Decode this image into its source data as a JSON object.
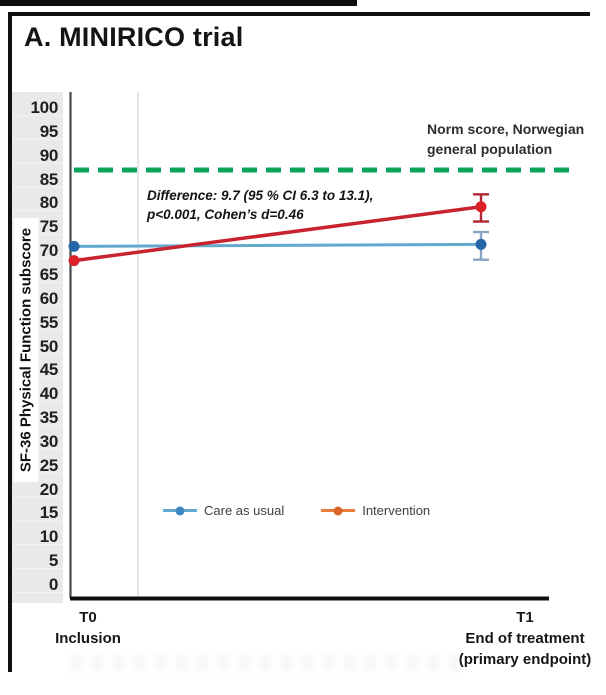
{
  "figure": {
    "panel_label": "A. MINIRICO trial"
  },
  "chart_data": {
    "type": "line",
    "title": "A. MINIRICO trial",
    "xlabel": "",
    "ylabel": "SF-36 Physical Function subscore",
    "ylim": [
      0,
      100
    ],
    "ytick_step": 5,
    "gridlines": "single faint vertical line near T0, no horizontal gridlines",
    "legend_position": "bottom-center inside plot",
    "categories": [
      "T0",
      "T1"
    ],
    "x_tick_labels": [
      [
        "T0",
        "Inclusion"
      ],
      [
        "T1",
        "End of treatment",
        "(primary endpoint)"
      ]
    ],
    "series": [
      {
        "name": "Care as usual",
        "values": [
          71,
          71.4
        ],
        "ci_T1": [
          68.2,
          74.0
        ],
        "line_color": "#64A9CE",
        "marker_color": "#2566A8",
        "error_bar_color": "#86A6C2",
        "legend_marker_color": "#64A9CE",
        "legend_dot_color": "#3E87C0"
      },
      {
        "name": "Intervention",
        "values": [
          68,
          79.3
        ],
        "ci_T1": [
          76.2,
          81.9
        ],
        "line_color": "#C8232E",
        "marker_color": "#DA2128",
        "error_bar_color": "#B22736",
        "legend_marker_color": "#E87D3C",
        "legend_dot_color": "#D8662A"
      }
    ],
    "norm_line": {
      "value": 87,
      "style": "dashed",
      "color": "#0CA257",
      "label_lines": [
        "Norm score, Norwegian",
        "general population"
      ]
    },
    "annotation_lines": [
      "Difference: 9.7 (95 % CI 6.3 to 13.1),",
      "p<0.001, Cohen’s d=0.46"
    ]
  }
}
